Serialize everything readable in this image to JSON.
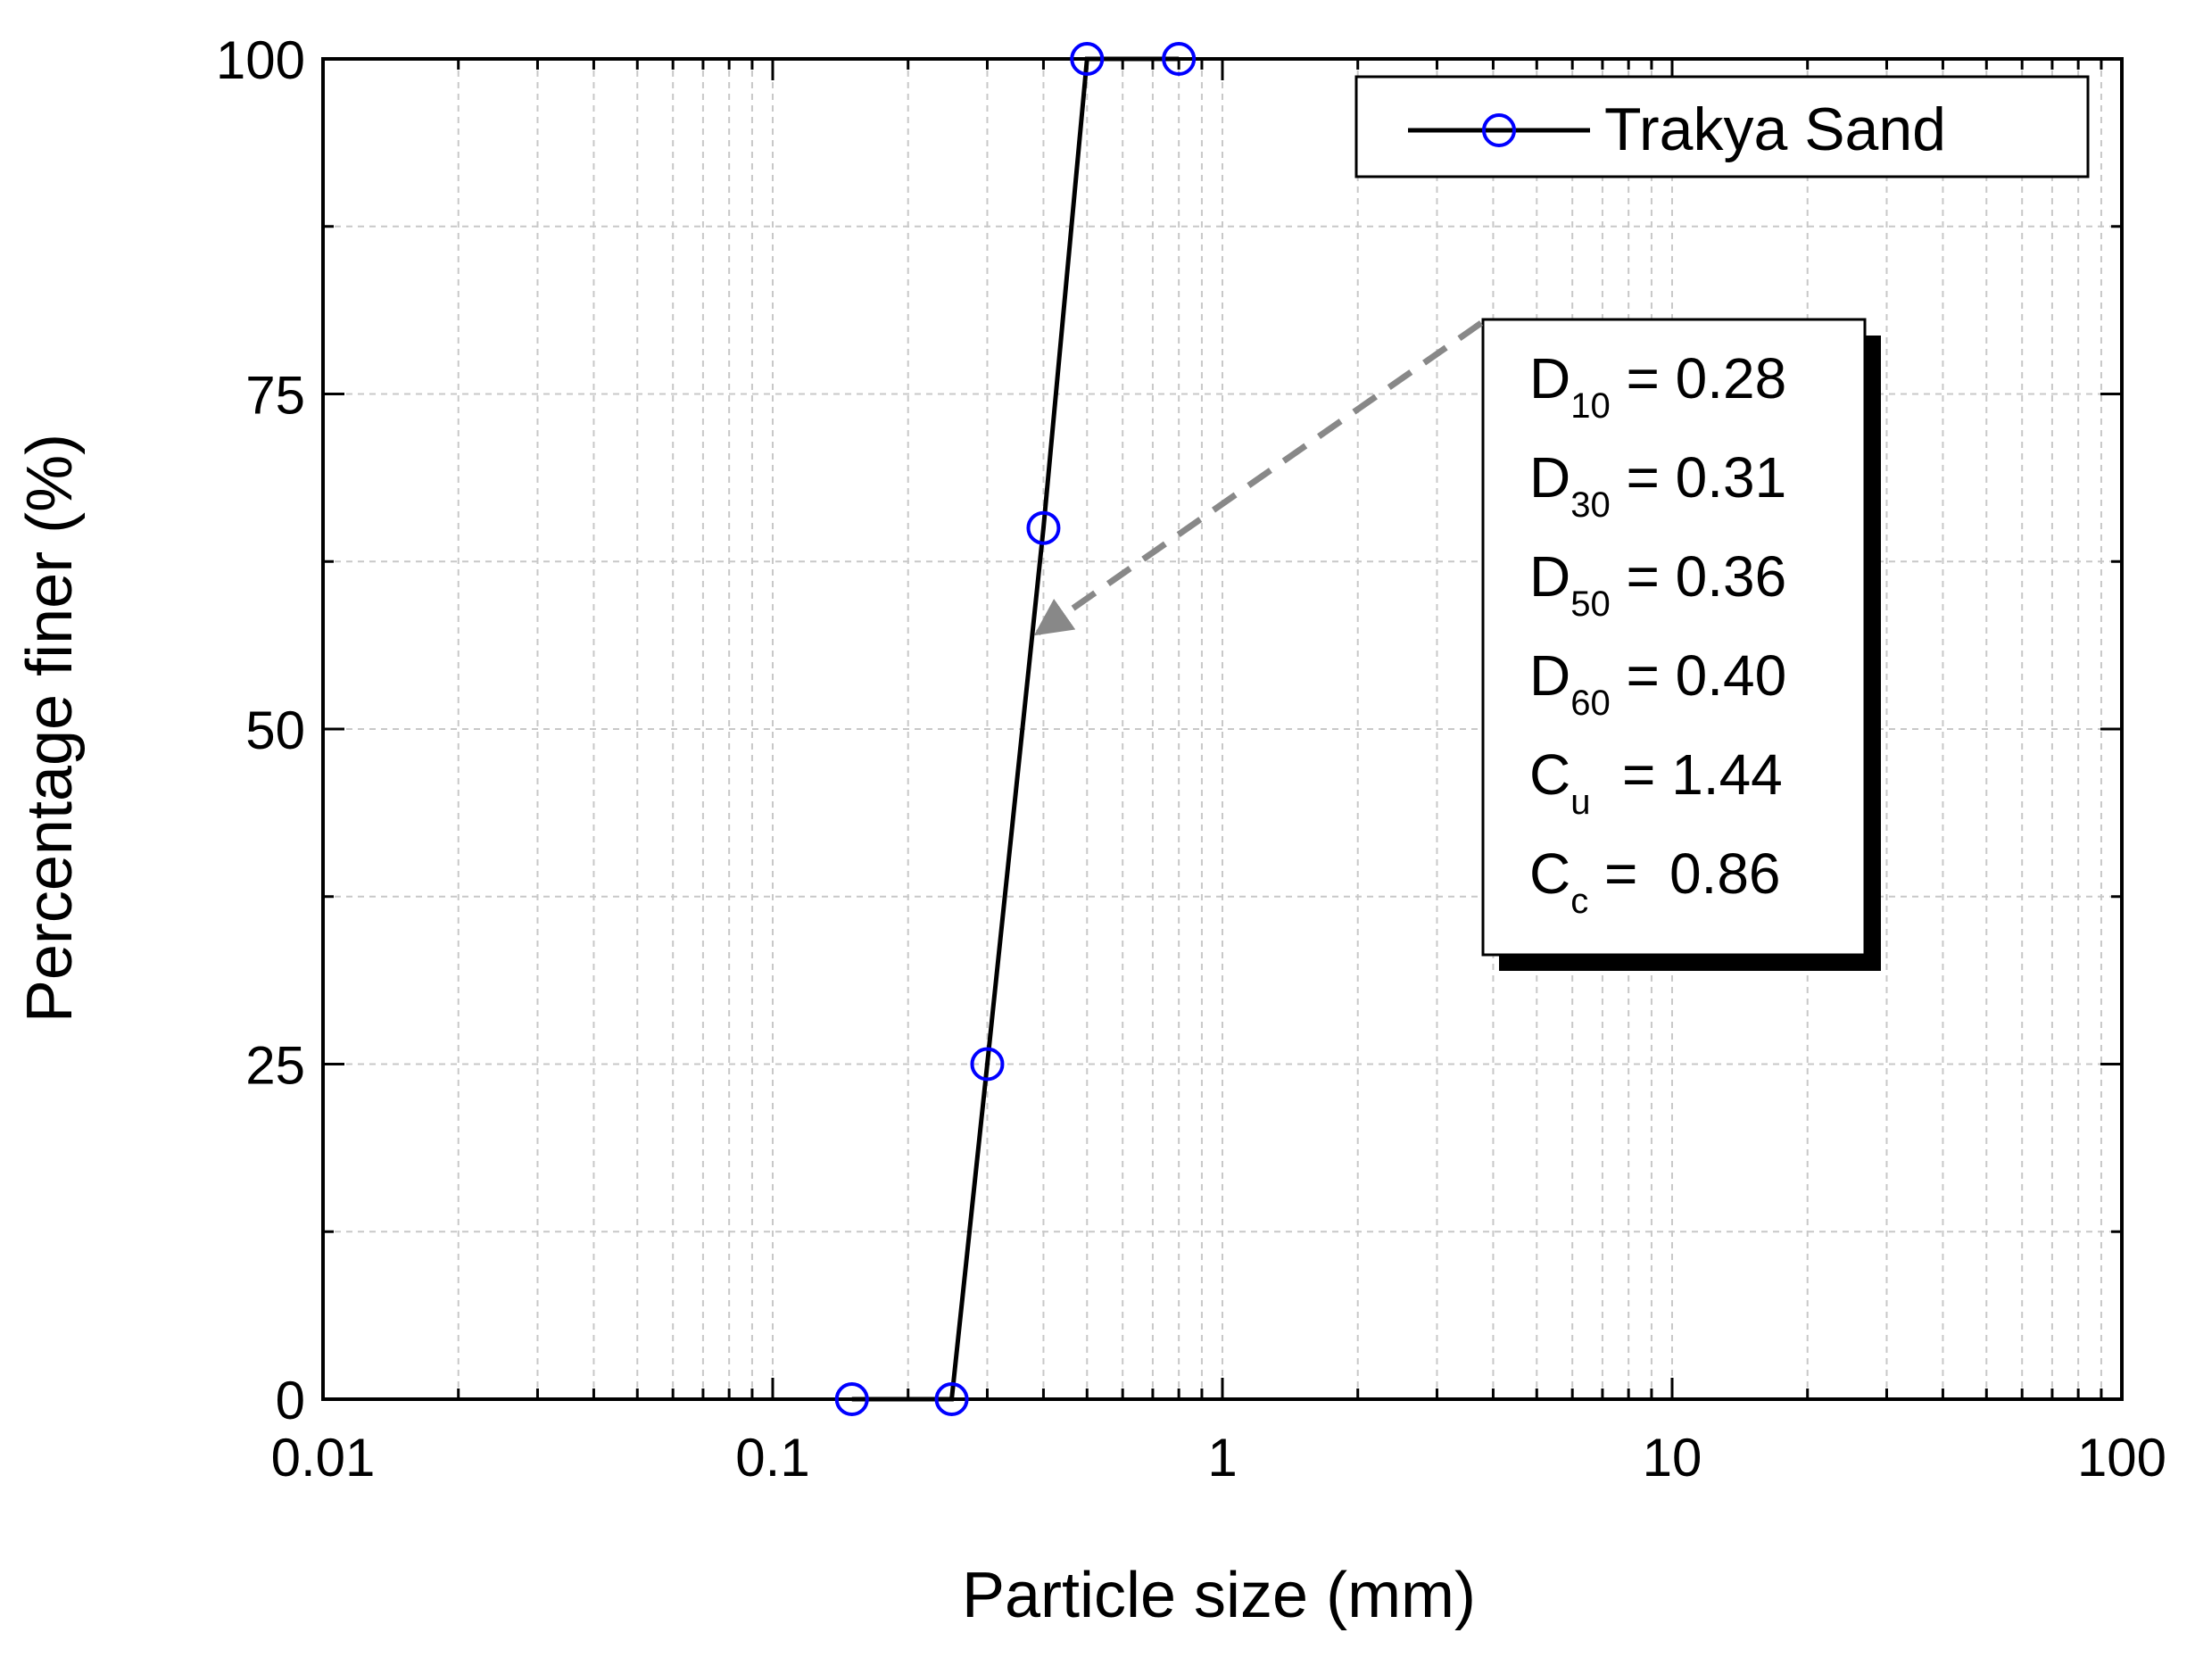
{
  "chart_data": {
    "type": "line",
    "title": "",
    "xlabel": "Particle size (mm)",
    "ylabel": "Percentage finer (%)",
    "x_scale": "log",
    "xlim": [
      0.01,
      100
    ],
    "ylim": [
      0,
      100
    ],
    "x_ticks": [
      {
        "value": 0.01,
        "label": "0.01"
      },
      {
        "value": 0.1,
        "label": "0.1"
      },
      {
        "value": 1,
        "label": "1"
      },
      {
        "value": 10,
        "label": "10"
      },
      {
        "value": 100,
        "label": "100"
      }
    ],
    "y_ticks": [
      {
        "value": 0,
        "label": "0"
      },
      {
        "value": 25,
        "label": "25"
      },
      {
        "value": 50,
        "label": "50"
      },
      {
        "value": 75,
        "label": "75"
      },
      {
        "value": 100,
        "label": "100"
      }
    ],
    "grid": true,
    "legend_position": "top-right",
    "series": [
      {
        "name": "Trakya Sand",
        "line_color": "#000000",
        "marker_color": "#0000ff",
        "marker": "hollow-circle",
        "x": [
          0.15,
          0.25,
          0.3,
          0.4,
          0.5,
          0.8
        ],
        "y": [
          0,
          0,
          25,
          65,
          100,
          100
        ]
      }
    ],
    "annotation": {
      "lines": [
        {
          "symbol": "D",
          "sub": "10",
          "eq": " = 0.28"
        },
        {
          "symbol": "D",
          "sub": "30",
          "eq": " = 0.31"
        },
        {
          "symbol": "D",
          "sub": "50",
          "eq": " = 0.36"
        },
        {
          "symbol": "D",
          "sub": "60",
          "eq": " = 0.40"
        },
        {
          "symbol": "C",
          "sub": "u",
          "eq": "  = 1.44"
        },
        {
          "symbol": "C",
          "sub": "c",
          "eq": " =  0.86"
        }
      ],
      "arrow_color": "#888888",
      "arrow_target": {
        "x": 0.38,
        "y": 57
      }
    }
  }
}
